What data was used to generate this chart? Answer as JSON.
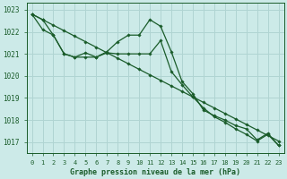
{
  "xlabel": "Graphe pression niveau de la mer (hPa)",
  "bg_color": "#cceae8",
  "grid_color": "#b0d4d2",
  "line_color": "#1a5c2a",
  "x": [
    0,
    1,
    2,
    3,
    4,
    5,
    6,
    7,
    8,
    9,
    10,
    11,
    12,
    13,
    14,
    15,
    16,
    17,
    18,
    19,
    20,
    21,
    22,
    23
  ],
  "y_straight": [
    1022.8,
    1022.55,
    1022.3,
    1022.05,
    1021.8,
    1021.55,
    1021.3,
    1021.05,
    1020.8,
    1020.55,
    1020.3,
    1020.05,
    1019.8,
    1019.55,
    1019.3,
    1019.05,
    1018.8,
    1018.55,
    1018.3,
    1018.05,
    1017.8,
    1017.55,
    1017.3,
    1017.05
  ],
  "y_zigzag": [
    1022.8,
    1022.1,
    1021.85,
    1021.0,
    1020.85,
    1021.05,
    1020.85,
    1021.1,
    1021.55,
    1021.85,
    1021.85,
    1022.55,
    1022.25,
    1021.1,
    1019.75,
    1019.2,
    1018.45,
    1018.2,
    1018.0,
    1017.75,
    1017.6,
    1017.1,
    1017.4,
    1016.85
  ],
  "y_mid": [
    1022.8,
    1022.55,
    1021.85,
    1021.0,
    1020.85,
    1020.85,
    1020.85,
    1021.05,
    1021.0,
    1021.0,
    1021.0,
    1021.0,
    1021.6,
    1020.2,
    1019.6,
    1019.05,
    1018.55,
    1018.15,
    1017.9,
    1017.6,
    1017.35,
    1017.05,
    1017.35,
    1016.85
  ],
  "ylim": [
    1016.5,
    1023.3
  ],
  "yticks": [
    1017,
    1018,
    1019,
    1020,
    1021,
    1022,
    1023
  ],
  "xlim": [
    -0.5,
    23.5
  ],
  "xticks": [
    0,
    1,
    2,
    3,
    4,
    5,
    6,
    7,
    8,
    9,
    10,
    11,
    12,
    13,
    14,
    15,
    16,
    17,
    18,
    19,
    20,
    21,
    22,
    23
  ],
  "tick_fontsize": 5.0,
  "label_fontsize": 6.0
}
